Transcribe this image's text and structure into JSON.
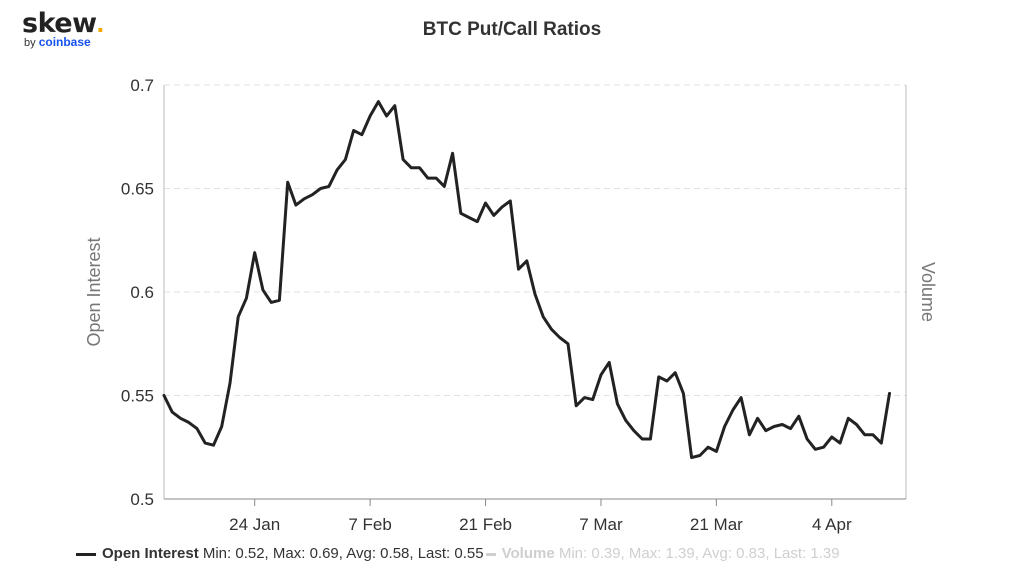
{
  "logo": {
    "main": "skew",
    "dot": ".",
    "by": "by",
    "brand": "coinbase"
  },
  "chart_data": {
    "type": "line",
    "title": "BTC Put/Call Ratios",
    "ylabel": "Open Interest",
    "y2label": "Volume",
    "ylim": [
      0.5,
      0.7
    ],
    "yticks": [
      "0.5",
      "0.55",
      "0.6",
      "0.65",
      "0.7"
    ],
    "xticks": [
      "24 Jan",
      "7 Feb",
      "21 Feb",
      "7 Mar",
      "21 Mar",
      "4 Apr"
    ],
    "x_start": "2022-01-13",
    "x_end": "2022-04-13",
    "grid": true,
    "series": [
      {
        "name": "Open Interest",
        "color": "#222222",
        "stats": "Min: 0.52, Max: 0.69, Avg: 0.58, Last: 0.55",
        "points": [
          [
            "2022-01-13",
            0.55
          ],
          [
            "2022-01-14",
            0.542
          ],
          [
            "2022-01-15",
            0.539
          ],
          [
            "2022-01-16",
            0.537
          ],
          [
            "2022-01-17",
            0.534
          ],
          [
            "2022-01-18",
            0.527
          ],
          [
            "2022-01-19",
            0.526
          ],
          [
            "2022-01-20",
            0.535
          ],
          [
            "2022-01-21",
            0.556
          ],
          [
            "2022-01-22",
            0.588
          ],
          [
            "2022-01-23",
            0.597
          ],
          [
            "2022-01-24",
            0.619
          ],
          [
            "2022-01-25",
            0.601
          ],
          [
            "2022-01-26",
            0.595
          ],
          [
            "2022-01-27",
            0.596
          ],
          [
            "2022-01-28",
            0.653
          ],
          [
            "2022-01-29",
            0.642
          ],
          [
            "2022-01-30",
            0.645
          ],
          [
            "2022-01-31",
            0.647
          ],
          [
            "2022-02-01",
            0.65
          ],
          [
            "2022-02-02",
            0.651
          ],
          [
            "2022-02-03",
            0.659
          ],
          [
            "2022-02-04",
            0.664
          ],
          [
            "2022-02-05",
            0.678
          ],
          [
            "2022-02-06",
            0.676
          ],
          [
            "2022-02-07",
            0.685
          ],
          [
            "2022-02-08",
            0.692
          ],
          [
            "2022-02-09",
            0.685
          ],
          [
            "2022-02-10",
            0.69
          ],
          [
            "2022-02-11",
            0.664
          ],
          [
            "2022-02-12",
            0.66
          ],
          [
            "2022-02-13",
            0.66
          ],
          [
            "2022-02-14",
            0.655
          ],
          [
            "2022-02-15",
            0.655
          ],
          [
            "2022-02-16",
            0.651
          ],
          [
            "2022-02-17",
            0.667
          ],
          [
            "2022-02-18",
            0.638
          ],
          [
            "2022-02-19",
            0.636
          ],
          [
            "2022-02-20",
            0.634
          ],
          [
            "2022-02-21",
            0.643
          ],
          [
            "2022-02-22",
            0.637
          ],
          [
            "2022-02-23",
            0.641
          ],
          [
            "2022-02-24",
            0.644
          ],
          [
            "2022-02-25",
            0.611
          ],
          [
            "2022-02-26",
            0.615
          ],
          [
            "2022-02-27",
            0.599
          ],
          [
            "2022-02-28",
            0.588
          ],
          [
            "2022-03-01",
            0.582
          ],
          [
            "2022-03-02",
            0.578
          ],
          [
            "2022-03-03",
            0.575
          ],
          [
            "2022-03-04",
            0.545
          ],
          [
            "2022-03-05",
            0.549
          ],
          [
            "2022-03-06",
            0.548
          ],
          [
            "2022-03-07",
            0.56
          ],
          [
            "2022-03-08",
            0.566
          ],
          [
            "2022-03-09",
            0.546
          ],
          [
            "2022-03-10",
            0.538
          ],
          [
            "2022-03-11",
            0.533
          ],
          [
            "2022-03-12",
            0.529
          ],
          [
            "2022-03-13",
            0.529
          ],
          [
            "2022-03-14",
            0.559
          ],
          [
            "2022-03-15",
            0.557
          ],
          [
            "2022-03-16",
            0.561
          ],
          [
            "2022-03-17",
            0.551
          ],
          [
            "2022-03-18",
            0.52
          ],
          [
            "2022-03-19",
            0.521
          ],
          [
            "2022-03-20",
            0.525
          ],
          [
            "2022-03-21",
            0.523
          ],
          [
            "2022-03-22",
            0.535
          ],
          [
            "2022-03-23",
            0.543
          ],
          [
            "2022-03-24",
            0.549
          ],
          [
            "2022-03-25",
            0.531
          ],
          [
            "2022-03-26",
            0.539
          ],
          [
            "2022-03-27",
            0.533
          ],
          [
            "2022-03-28",
            0.535
          ],
          [
            "2022-03-29",
            0.536
          ],
          [
            "2022-03-30",
            0.534
          ],
          [
            "2022-03-31",
            0.54
          ],
          [
            "2022-04-01",
            0.529
          ],
          [
            "2022-04-02",
            0.524
          ],
          [
            "2022-04-03",
            0.525
          ],
          [
            "2022-04-04",
            0.53
          ],
          [
            "2022-04-05",
            0.527
          ],
          [
            "2022-04-06",
            0.539
          ],
          [
            "2022-04-07",
            0.536
          ],
          [
            "2022-04-08",
            0.531
          ],
          [
            "2022-04-09",
            0.531
          ],
          [
            "2022-04-10",
            0.527
          ],
          [
            "2022-04-11",
            0.551
          ]
        ]
      },
      {
        "name": "Volume",
        "color": "#cfcfcf",
        "stats": "Min: 0.39, Max: 1.39, Avg: 0.83, Last: 1.39",
        "points": []
      }
    ]
  }
}
